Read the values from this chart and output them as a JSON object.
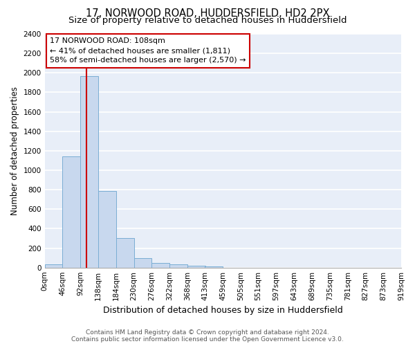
{
  "title1": "17, NORWOOD ROAD, HUDDERSFIELD, HD2 2PX",
  "title2": "Size of property relative to detached houses in Huddersfield",
  "xlabel": "Distribution of detached houses by size in Huddersfield",
  "ylabel": "Number of detached properties",
  "bin_edges": [
    0,
    46,
    92,
    138,
    184,
    230,
    276,
    322,
    368,
    413,
    459,
    505,
    551,
    597,
    643,
    689,
    735,
    781,
    827,
    873,
    919
  ],
  "bar_heights": [
    30,
    1140,
    1970,
    790,
    300,
    100,
    45,
    35,
    20,
    15,
    0,
    0,
    0,
    0,
    0,
    0,
    0,
    0,
    0,
    0
  ],
  "bar_color": "#c8d8ee",
  "bar_edgecolor": "#7aadd4",
  "property_size": 108,
  "red_line_color": "#cc0000",
  "annotation_line1": "17 NORWOOD ROAD: 108sqm",
  "annotation_line2": "← 41% of detached houses are smaller (1,811)",
  "annotation_line3": "58% of semi-detached houses are larger (2,570) →",
  "annotation_box_color": "#ffffff",
  "annotation_box_edgecolor": "#cc0000",
  "ylim": [
    0,
    2400
  ],
  "yticks": [
    0,
    200,
    400,
    600,
    800,
    1000,
    1200,
    1400,
    1600,
    1800,
    2000,
    2200,
    2400
  ],
  "background_color": "#e8eef8",
  "grid_color": "#ffffff",
  "footer_text": "Contains HM Land Registry data © Crown copyright and database right 2024.\nContains public sector information licensed under the Open Government Licence v3.0.",
  "title1_fontsize": 10.5,
  "title2_fontsize": 9.5,
  "xlabel_fontsize": 9,
  "ylabel_fontsize": 8.5,
  "tick_fontsize": 7.5,
  "annotation_fontsize": 8,
  "footer_fontsize": 6.5
}
